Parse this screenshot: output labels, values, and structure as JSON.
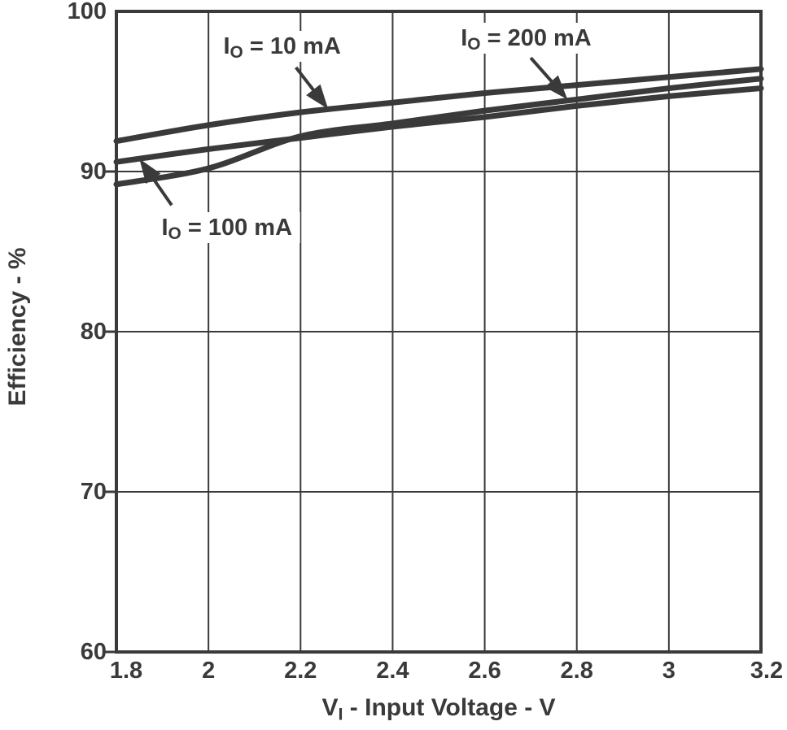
{
  "chart_data": {
    "type": "line",
    "title": "",
    "xlabel": {
      "pre": "V",
      "sub": "I",
      "post": " - Input Voltage - V"
    },
    "ylabel": "Efficiency - %",
    "xlim": [
      1.8,
      3.2
    ],
    "ylim": [
      60,
      100
    ],
    "grid": true,
    "legend_position": "none",
    "x_ticks": [
      "1.8",
      "2",
      "2.2",
      "2.4",
      "2.6",
      "2.8",
      "3",
      "3.2"
    ],
    "x_tick_values": [
      1.8,
      2,
      2.2,
      2.4,
      2.6,
      2.8,
      3,
      3.2
    ],
    "y_ticks": [
      "100",
      "90",
      "80",
      "70",
      "60"
    ],
    "y_tick_values": [
      100,
      90,
      80,
      70,
      60
    ],
    "x": [
      1.8,
      2.0,
      2.2,
      2.4,
      2.6,
      2.8,
      3.0,
      3.2
    ],
    "series": [
      {
        "name": "IO = 10 mA",
        "values": [
          91.9,
          92.9,
          93.7,
          94.3,
          94.9,
          95.4,
          95.9,
          96.4
        ]
      },
      {
        "name": "IO = 200 mA",
        "values": [
          89.2,
          90.2,
          92.2,
          93.0,
          93.8,
          94.5,
          95.2,
          95.8
        ]
      },
      {
        "name": "IO = 100 mA",
        "values": [
          90.6,
          91.4,
          92.1,
          92.8,
          93.4,
          94.1,
          94.7,
          95.2
        ]
      }
    ],
    "annotations": [
      {
        "id": "io-10ma",
        "pre": "I",
        "sub": "O",
        "post": " = 10 mA",
        "label_x": 2.16,
        "label_y": 97.8,
        "arrow_from": [
          2.19,
          96.5
        ],
        "arrow_to": [
          2.26,
          93.9
        ]
      },
      {
        "id": "io-200ma",
        "pre": "I",
        "sub": "O",
        "post": " = 200 mA",
        "label_x": 2.69,
        "label_y": 98.3,
        "arrow_from": [
          2.7,
          97.1
        ],
        "arrow_to": [
          2.78,
          94.5
        ]
      },
      {
        "id": "io-100ma",
        "pre": "I",
        "sub": "O",
        "post": " = 100 mA",
        "label_x": 2.04,
        "label_y": 86.5,
        "arrow_from": [
          1.92,
          87.9
        ],
        "arrow_to": [
          1.85,
          90.8
        ]
      }
    ],
    "colors": {
      "ink": "#3a3a3a",
      "background": "#ffffff"
    }
  }
}
